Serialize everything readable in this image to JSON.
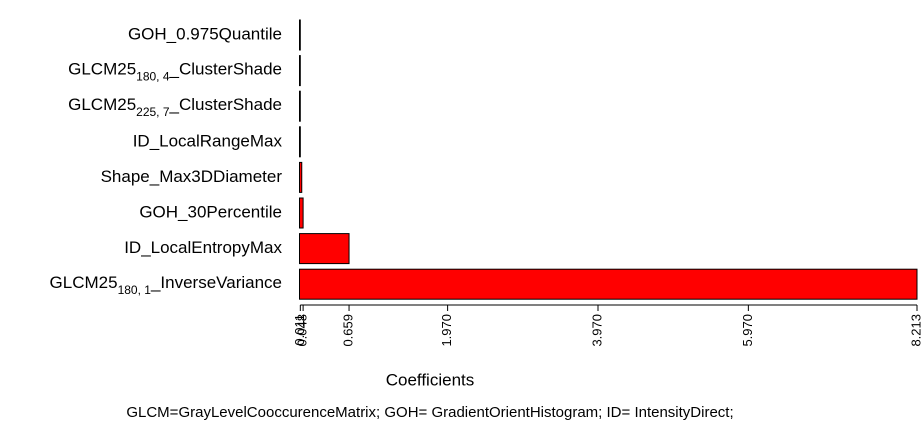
{
  "chart_data": {
    "type": "barh",
    "categories": [
      "GOH_0.975Quantile",
      [
        "GLCM25",
        "180, 4",
        "_ClusterShade"
      ],
      [
        "GLCM25",
        "225, 7",
        "_ClusterShade"
      ],
      "ID_LocalRangeMax",
      "Shape_Max3DDiameter",
      "GOH_30Percentile",
      "ID_LocalEntropyMax",
      [
        "GLCM25",
        "180, 1",
        "_InverseVariance"
      ]
    ],
    "values": [
      0.003,
      0.004,
      0.005,
      0.011,
      0.03,
      0.048,
      0.659,
      8.213
    ],
    "color": "#ff0000",
    "xlabel": "Coefficients",
    "xlim": [
      0,
      8.213
    ],
    "xticks": [
      0.011,
      0.048,
      0.659,
      {
        "value": 1.97,
        "label": "1.970"
      },
      {
        "value": 3.97,
        "label": "3.970"
      },
      {
        "value": 5.97,
        "label": "5.970"
      },
      8.213
    ],
    "note": "GLCM=GrayLevelCooccurenceMatrix; GOH= GradientOrientHistogram; ID= IntensityDirect;"
  }
}
